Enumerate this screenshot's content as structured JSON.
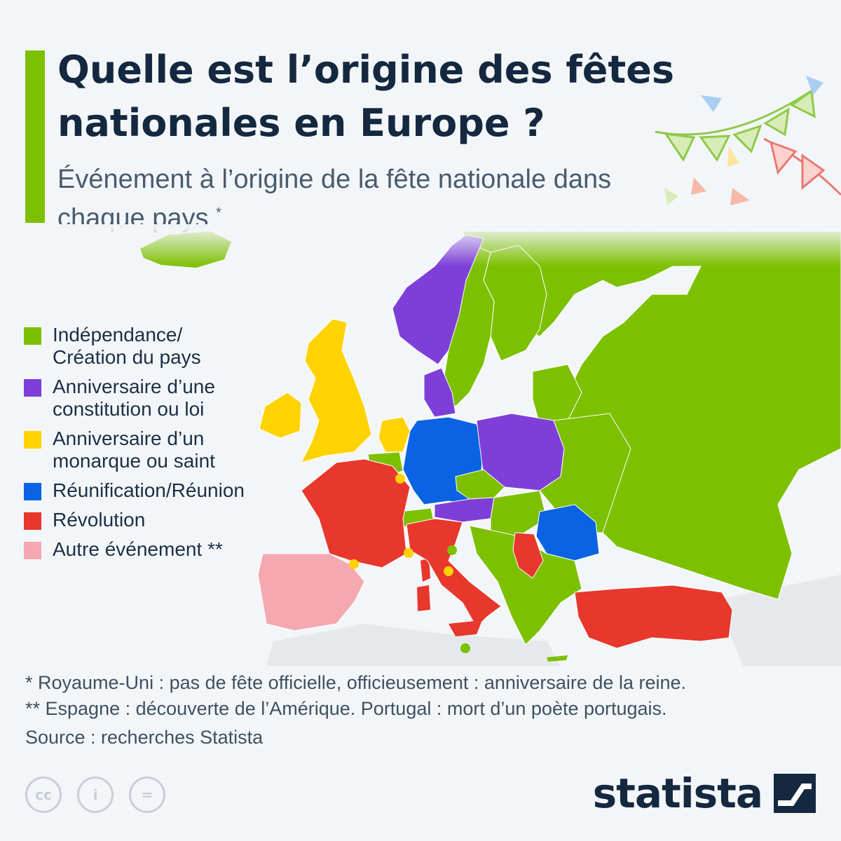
{
  "header": {
    "title": "Quelle est l’origine des fêtes nationales en Europe ?",
    "subtitle": "Événement à l’origine de la fête nationale dans chaque pays",
    "subtitle_mark": "*"
  },
  "colors": {
    "accent": "#7cc000",
    "independance": "#7cc000",
    "constitution": "#7e3fd8",
    "monarque": "#ffd200",
    "reunification": "#0a63e3",
    "revolution": "#e8372c",
    "autre": "#f4a8b0",
    "no_data": "#e6e9ec"
  },
  "legend": {
    "items": [
      {
        "label": "Indépendance/\nCréation du pays",
        "color": "#7cc000"
      },
      {
        "label": "Anniversaire d’une\nconstitution ou loi",
        "color": "#7e3fd8"
      },
      {
        "label": "Anniversaire d’un\nmonarque ou saint",
        "color": "#ffd200"
      },
      {
        "label": "Réunification/Réunion",
        "color": "#0a63e3"
      },
      {
        "label": "Révolution",
        "color": "#e8372c"
      },
      {
        "label": "Autre événement **",
        "color": "#f4a8b0"
      }
    ]
  },
  "footnotes": {
    "note1": "*   Royaume-Uni : pas de fête officielle, officieusement : anniversaire de la reine.",
    "note2": "** Espagne : découverte de l’Amérique. Portugal : mort d’un poète portugais."
  },
  "source": "Source : recherches Statista",
  "license": {
    "cc": "cc",
    "by": "i",
    "nd": "="
  },
  "brand": {
    "name": "statista"
  }
}
